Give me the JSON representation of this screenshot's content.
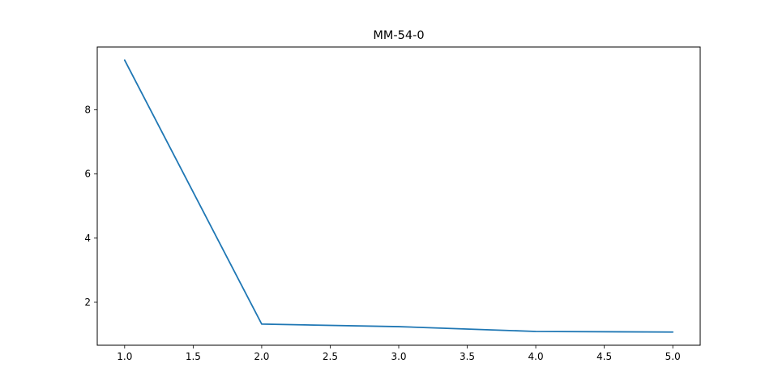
{
  "chart_data": {
    "type": "line",
    "title": "MM-54-0",
    "xlabel": "",
    "ylabel": "",
    "x": [
      1.0,
      2.0,
      3.0,
      4.0,
      5.0
    ],
    "series": [
      {
        "values": [
          9.55,
          1.32,
          1.24,
          1.09,
          1.07
        ]
      }
    ],
    "xlim": [
      0.8,
      5.2
    ],
    "ylim": [
      0.66,
      9.96
    ],
    "xticks": [
      "1.0",
      "1.5",
      "2.0",
      "2.5",
      "3.0",
      "3.5",
      "4.0",
      "4.5",
      "5.0"
    ],
    "xtick_values": [
      1.0,
      1.5,
      2.0,
      2.5,
      3.0,
      3.5,
      4.0,
      4.5,
      5.0
    ],
    "yticks": [
      "2",
      "4",
      "6",
      "8"
    ],
    "ytick_values": [
      2,
      4,
      6,
      8
    ],
    "grid": false,
    "legend": "none",
    "line_color": "#1f77b4"
  }
}
